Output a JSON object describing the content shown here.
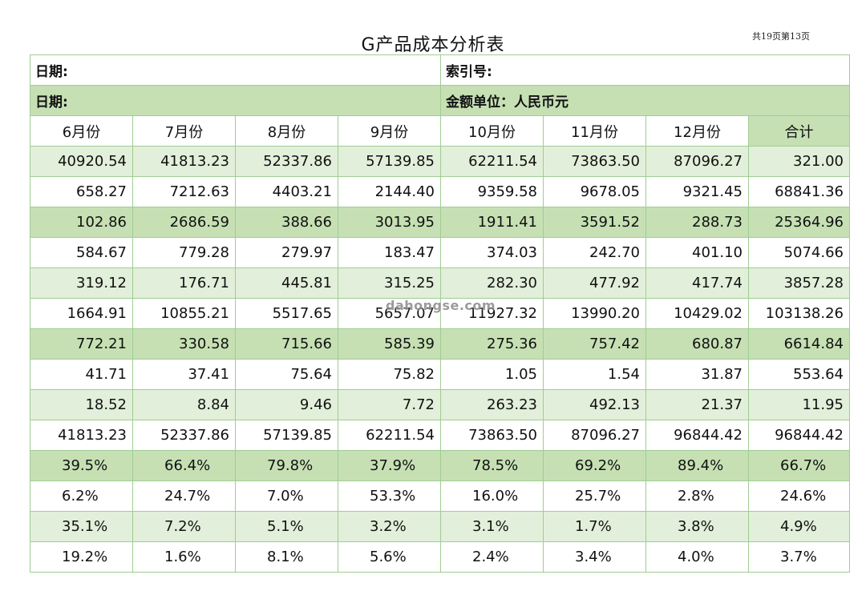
{
  "page_number": "共19页第13页",
  "title": "G产品成本分析表",
  "info": {
    "date1": "日期:",
    "index_no": "索引号:",
    "date2": "日期:",
    "unit": "金额单位：人民币元"
  },
  "columns": [
    "6月份",
    "7月份",
    "8月份",
    "9月份",
    "10月份",
    "11月份",
    "12月份",
    "合计"
  ],
  "numeric_rows": [
    [
      "40920.54",
      "41813.23",
      "52337.86",
      "57139.85",
      "62211.54",
      "73863.50",
      "87096.27",
      "321.00"
    ],
    [
      "658.27",
      "7212.63",
      "4403.21",
      "2144.40",
      "9359.58",
      "9678.05",
      "9321.45",
      "68841.36"
    ],
    [
      "102.86",
      "2686.59",
      "388.66",
      "3013.95",
      "1911.41",
      "3591.52",
      "288.73",
      "25364.96"
    ],
    [
      "584.67",
      "779.28",
      "279.97",
      "183.47",
      "374.03",
      "242.70",
      "401.10",
      "5074.66"
    ],
    [
      "319.12",
      "176.71",
      "445.81",
      "315.25",
      "282.30",
      "477.92",
      "417.74",
      "3857.28"
    ],
    [
      "1664.91",
      "10855.21",
      "5517.65",
      "5657.07",
      "11927.32",
      "13990.20",
      "10429.02",
      "103138.26"
    ],
    [
      "772.21",
      "330.58",
      "715.66",
      "585.39",
      "275.36",
      "757.42",
      "680.87",
      "6614.84"
    ],
    [
      "41.71",
      "37.41",
      "75.64",
      "75.82",
      "1.05",
      "1.54",
      "31.87",
      "553.64"
    ],
    [
      "18.52",
      "8.84",
      "9.46",
      "7.72",
      "263.23",
      "492.13",
      "21.37",
      "11.95"
    ],
    [
      "41813.23",
      "52337.86",
      "57139.85",
      "62211.54",
      "73863.50",
      "87096.27",
      "96844.42",
      "96844.42"
    ]
  ],
  "percent_rows": [
    [
      "39.5%",
      "66.4%",
      "79.8%",
      "37.9%",
      "78.5%",
      "69.2%",
      "89.4%",
      "66.7%"
    ],
    [
      "6.2%",
      "24.7%",
      "7.0%",
      "53.3%",
      "16.0%",
      "25.7%",
      "2.8%",
      "24.6%"
    ],
    [
      "35.1%",
      "7.2%",
      "5.1%",
      "3.2%",
      "3.1%",
      "1.7%",
      "3.8%",
      "4.9%"
    ],
    [
      "19.2%",
      "1.6%",
      "8.1%",
      "5.6%",
      "2.4%",
      "3.4%",
      "4.0%",
      "3.7%"
    ]
  ],
  "watermark": "dahongse.com"
}
